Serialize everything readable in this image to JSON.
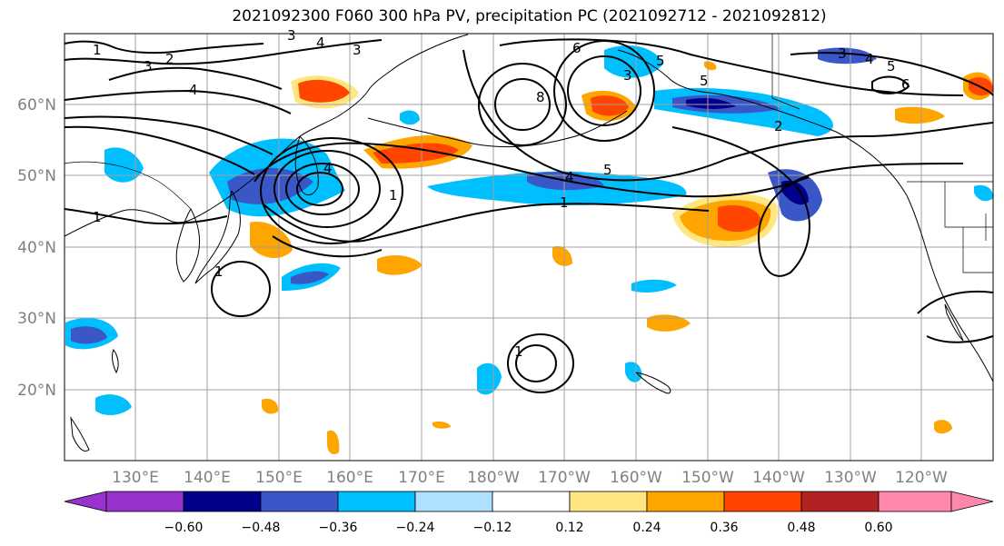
{
  "title": "2021092300 F060 300 hPa PV, precipitation PC (2021092712 - 2021092812)",
  "lat_labels": [
    "60°N",
    "50°N",
    "40°N",
    "30°N",
    "20°N"
  ],
  "lon_labels": [
    "130°E",
    "140°E",
    "150°E",
    "160°E",
    "170°E",
    "180°W",
    "170°W",
    "160°W",
    "150°W",
    "140°W",
    "130°W",
    "120°W"
  ],
  "colorbar": {
    "colors": [
      "#9932cc",
      "#00008b",
      "#3a57c8",
      "#00bfff",
      "#b0e0ff",
      "#ffffff",
      "#ffe680",
      "#ffa500",
      "#ff4500",
      "#b22222",
      "#ff88aa"
    ],
    "tick_labels": [
      "-0.60",
      "-0.48",
      "-0.36",
      "-0.24",
      "-0.12",
      "0.12",
      "0.24",
      "0.36",
      "0.48",
      "0.60"
    ]
  },
  "contour_labels": [
    "1",
    "3",
    "2",
    "4",
    "4",
    "3",
    "3",
    "6",
    "8",
    "5",
    "3",
    "4",
    "5",
    "1",
    "5",
    "2",
    "1",
    "4",
    "1",
    "1",
    "1",
    "3",
    "4",
    "5",
    "6"
  ],
  "palette": {
    "neg_light": "#00bfff",
    "neg_mid": "#3a57c8",
    "neg_dark": "#00008b",
    "pos_light": "#ffe680",
    "pos_mid": "#ffa500",
    "pos_dark": "#ff4500"
  }
}
